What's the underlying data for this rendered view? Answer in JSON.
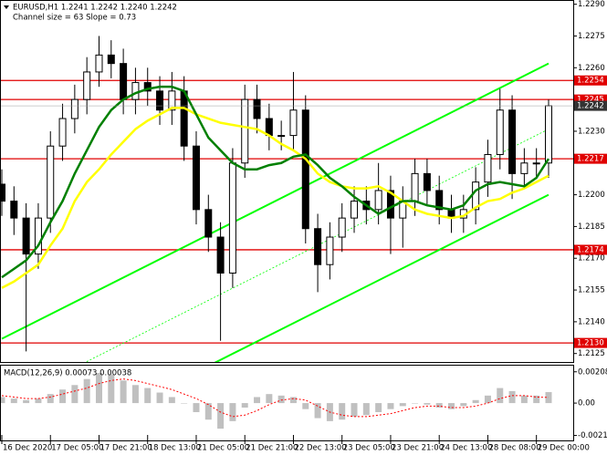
{
  "chart_data": {
    "type": "candlestick",
    "title": "EURUSD,H1  1.2241 1.2242 1.2240 1.2242",
    "subtitle": "Channel size = 63 Slope = 0.73",
    "categories": [
      "16 Dec 2020",
      null,
      null,
      null,
      "17 Dec 05:00",
      null,
      null,
      null,
      "17 Dec 21:00",
      null,
      null,
      null,
      "18 Dec 13:00",
      null,
      null,
      null,
      "21 Dec 05:00",
      null,
      null,
      null,
      "21 Dec 21:00",
      null,
      null,
      null,
      "22 Dec 13:00",
      null,
      null,
      null,
      "23 Dec 05:00",
      null,
      null,
      null,
      "23 Dec 21:00",
      null,
      null,
      null,
      "24 Dec 13:00",
      null,
      null,
      null,
      "28 Dec 08:00",
      null,
      null,
      null,
      "29 Dec 00:00",
      null
    ],
    "open": [
      1.2205,
      1.2197,
      1.2189,
      1.2172,
      1.2189,
      1.2223,
      1.2236,
      1.2245,
      1.2258,
      1.2266,
      1.2262,
      1.2245,
      1.2253,
      1.2249,
      1.224,
      1.2249,
      1.2223,
      1.2193,
      1.218,
      1.2163,
      1.2215,
      1.2245,
      1.2236,
      1.2228,
      1.2228,
      1.224,
      1.2184,
      1.2167,
      1.218,
      1.2189,
      1.2197,
      1.2193,
      1.2202,
      1.2189,
      1.2197,
      1.221,
      1.2202,
      1.2193,
      1.2189,
      1.2193,
      1.2206,
      1.2219,
      1.224,
      1.221,
      1.2215,
      1.2215
    ],
    "high": [
      1.2212,
      1.2204,
      1.2196,
      1.2196,
      1.223,
      1.2243,
      1.2252,
      1.2265,
      1.2275,
      1.2273,
      1.2269,
      1.226,
      1.226,
      1.2256,
      1.2258,
      1.2256,
      1.223,
      1.22,
      1.2187,
      1.2222,
      1.2252,
      1.2252,
      1.2243,
      1.2235,
      1.2258,
      1.2247,
      1.2191,
      1.2187,
      1.2196,
      1.2204,
      1.2204,
      1.2215,
      1.2209,
      1.2204,
      1.2217,
      1.2217,
      1.2209,
      1.22,
      1.22,
      1.2213,
      1.2226,
      1.225,
      1.2247,
      1.2222,
      1.2222,
      1.2245
    ],
    "low": [
      1.219,
      1.2181,
      1.2126,
      1.2165,
      1.2182,
      1.2216,
      1.2229,
      1.2238,
      1.2251,
      1.2255,
      1.2238,
      1.2238,
      1.2242,
      1.2233,
      1.2233,
      1.2216,
      1.2186,
      1.2173,
      1.2131,
      1.2156,
      1.2208,
      1.2229,
      1.2221,
      1.2221,
      1.2221,
      1.2177,
      1.2154,
      1.216,
      1.2173,
      1.2182,
      1.2186,
      1.2186,
      1.2172,
      1.2175,
      1.219,
      1.2195,
      1.2186,
      1.2182,
      1.2182,
      1.2186,
      1.2199,
      1.2212,
      1.2198,
      1.2203,
      1.2208,
      1.2208
    ],
    "close": [
      1.2197,
      1.2189,
      1.2172,
      1.2189,
      1.2223,
      1.2236,
      1.2245,
      1.2258,
      1.2266,
      1.2262,
      1.2245,
      1.2253,
      1.2249,
      1.224,
      1.2249,
      1.2223,
      1.2193,
      1.218,
      1.2163,
      1.2215,
      1.2245,
      1.2236,
      1.2228,
      1.2228,
      1.224,
      1.2184,
      1.2167,
      1.218,
      1.2189,
      1.2197,
      1.2193,
      1.2202,
      1.2189,
      1.2197,
      1.221,
      1.2202,
      1.2193,
      1.2189,
      1.2193,
      1.2206,
      1.2219,
      1.224,
      1.221,
      1.2215,
      1.2215,
      1.2242
    ],
    "moving_averages": [
      {
        "color": "#ffff00",
        "values": [
          1.2156,
          1.2159,
          1.2163,
          1.2167,
          1.2176,
          1.2184,
          1.2197,
          1.2206,
          1.2212,
          1.2219,
          1.2225,
          1.2231,
          1.2235,
          1.2238,
          1.2241,
          1.2241,
          1.2238,
          1.2236,
          1.2234,
          1.2233,
          1.2232,
          1.2231,
          1.2228,
          1.2224,
          1.2221,
          1.2217,
          1.221,
          1.2206,
          1.2204,
          1.2203,
          1.2203,
          1.2204,
          1.2201,
          1.2197,
          1.2193,
          1.2191,
          1.219,
          1.2189,
          1.219,
          1.2194,
          1.2197,
          1.2198,
          1.2201,
          1.2203,
          1.2206,
          1.2209
        ]
      },
      {
        "color": "#008000",
        "values": [
          1.2161,
          1.2165,
          1.2169,
          1.2176,
          1.2187,
          1.2197,
          1.221,
          1.2221,
          1.2232,
          1.224,
          1.2245,
          1.2248,
          1.225,
          1.2251,
          1.2251,
          1.2249,
          1.2238,
          1.2227,
          1.2221,
          1.2215,
          1.2212,
          1.2212,
          1.2214,
          1.2215,
          1.2218,
          1.2219,
          1.2214,
          1.2208,
          1.2204,
          1.2199,
          1.2195,
          1.2191,
          1.2194,
          1.2197,
          1.2197,
          1.2195,
          1.2194,
          1.2193,
          1.2195,
          1.2202,
          1.2205,
          1.2206,
          1.2205,
          1.2204,
          1.2208,
          1.2217
        ]
      }
    ],
    "channel": {
      "color": "#00ff00",
      "upper": [
        1.2132,
        1.2262
      ],
      "middle": [
        1.2101,
        1.2231
      ],
      "lower": [
        1.207,
        1.22
      ]
    },
    "levels": [
      1.2254,
      1.2245,
      1.2217,
      1.2174,
      {
        "value": 1.213,
        "label": "1.2130"
      }
    ],
    "level_color": "#e00000",
    "current_price": 1.2242,
    "ylim": [
      1.2121,
      1.2292
    ],
    "yticks": [
      {
        "value": 1.229,
        "label": "1.2290"
      },
      1.2275,
      {
        "value": 1.226,
        "label": "1.2260"
      },
      {
        "value": 1.223,
        "label": "1.2230"
      },
      {
        "value": 1.22,
        "label": "1.2200"
      },
      1.2185,
      {
        "value": 1.217,
        "label": "1.2170"
      },
      1.2155,
      {
        "value": 1.214,
        "label": "1.2140"
      },
      1.2125
    ],
    "macd": {
      "label": "MACD(12,26,9) 0.00073 0.00038",
      "ylim": [
        -0.00248,
        0.00255
      ],
      "yticks": [
        0.00208,
        {
          "value": 0,
          "label": "0.00"
        },
        -0.00215
      ],
      "histogram": {
        "color": "#c0c0c0",
        "values": [
          0.0004,
          0.0003,
          0.0002,
          0.0003,
          0.0006,
          0.0009,
          0.0012,
          0.0016,
          0.002,
          0.0019,
          0.0015,
          0.0012,
          0.001,
          0.0007,
          0.0004,
          0.0,
          -0.0006,
          -0.0011,
          -0.0017,
          -0.0012,
          -0.0003,
          0.0004,
          0.0006,
          0.0005,
          0.0004,
          -0.0004,
          -0.001,
          -0.0012,
          -0.0011,
          -0.0009,
          -0.0008,
          -0.0006,
          -0.0004,
          -0.0002,
          0.0,
          -0.0001,
          -0.0003,
          -0.0004,
          -0.0002,
          0.0002,
          0.0005,
          0.001,
          0.0008,
          0.0005,
          0.0005,
          0.00073
        ]
      },
      "signal": {
        "color": "#ff0000",
        "values": [
          0.0005,
          0.0004,
          0.0003,
          0.0003,
          0.0004,
          0.0006,
          0.0008,
          0.001,
          0.0013,
          0.0015,
          0.0016,
          0.0015,
          0.0013,
          0.0011,
          0.0009,
          0.0006,
          0.0003,
          -0.0001,
          -0.0006,
          -0.0009,
          -0.0008,
          -0.0005,
          -0.0001,
          0.0002,
          0.0003,
          0.0002,
          -0.0002,
          -0.0006,
          -0.0008,
          -0.0009,
          -0.0009,
          -0.0008,
          -0.0007,
          -0.0005,
          -0.0003,
          -0.0002,
          -0.0002,
          -0.0003,
          -0.0003,
          -0.0002,
          0.0,
          0.0003,
          0.0005,
          0.0005,
          0.0004,
          0.00038
        ]
      }
    }
  }
}
